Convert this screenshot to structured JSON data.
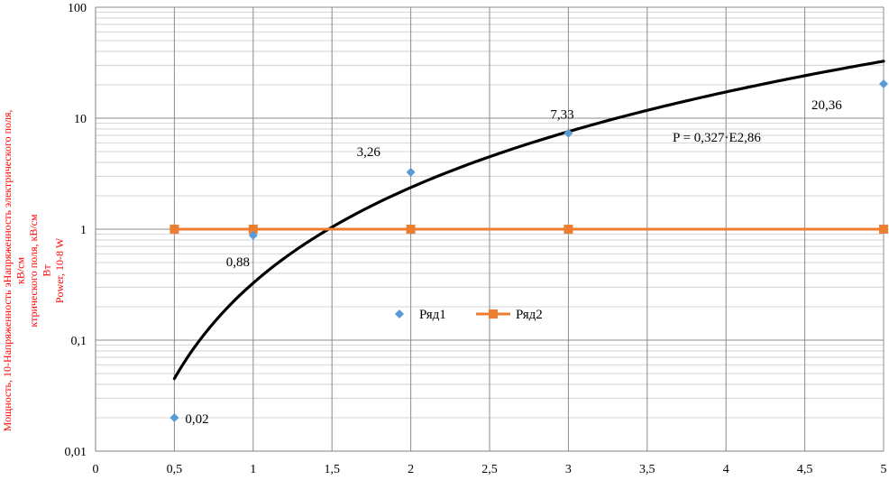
{
  "chart_data": {
    "type": "scatter",
    "scale_y": "log",
    "xlim": [
      0,
      5
    ],
    "ylim": [
      0.01,
      100
    ],
    "x_ticks": [
      "0",
      "0,5",
      "1",
      "1,5",
      "2",
      "2,5",
      "3",
      "3,5",
      "4",
      "4,5",
      "5"
    ],
    "y_ticks": [
      "0,01",
      "0,1",
      "1",
      "10",
      "100"
    ],
    "grid": true,
    "ylabel_lines": [
      "Мощность, 10-Напряженность эНапряженность электрического поля,",
      "кВ/см",
      "ктрического поля, кВ/см",
      "Вт",
      "Power, 10-8 W"
    ],
    "xlabel": "",
    "series": [
      {
        "name": "Ряд1",
        "kind": "markers",
        "marker": "diamond",
        "color": "#5b9bd5",
        "points": [
          {
            "x": 0.5,
            "y": 0.02,
            "label": "0,02"
          },
          {
            "x": 1,
            "y": 0.88,
            "label": "0,88"
          },
          {
            "x": 2,
            "y": 3.26,
            "label": "3,26"
          },
          {
            "x": 3,
            "y": 7.33,
            "label": "7,33"
          },
          {
            "x": 5,
            "y": 20.36,
            "label": "20,36"
          }
        ]
      },
      {
        "name": "Ряд2",
        "kind": "line-markers",
        "marker": "square",
        "color": "#ed7d31",
        "points": [
          {
            "x": 0.5,
            "y": 1
          },
          {
            "x": 1,
            "y": 1
          },
          {
            "x": 2,
            "y": 1
          },
          {
            "x": 3,
            "y": 1
          },
          {
            "x": 5,
            "y": 1
          }
        ]
      }
    ],
    "trendline": {
      "type": "power",
      "coefficient": 0.327,
      "exponent": 2.86,
      "x_range": [
        0.5,
        5
      ],
      "color": "#000000",
      "equation_label": "P = 0,327·E2,86"
    },
    "legend": {
      "placement": "center",
      "entries": [
        "Ряд1",
        "Ряд2"
      ]
    }
  }
}
